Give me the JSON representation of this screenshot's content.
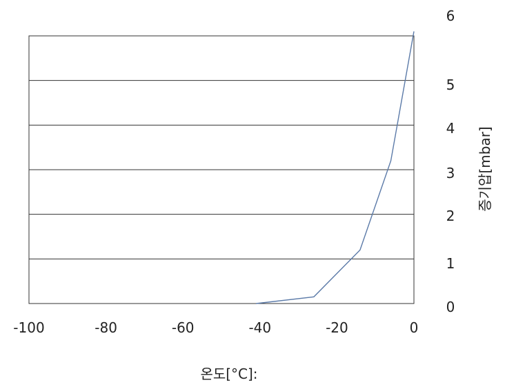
{
  "chart_data": {
    "type": "line",
    "title": "",
    "xlabel": "온도[°C]:",
    "ylabel": "증기압[mbar]",
    "x_ticks": [
      "-100",
      "-80",
      "-60",
      "-40",
      "-20",
      "0"
    ],
    "y_ticks": [
      "0",
      "1",
      "2",
      "3",
      "4",
      "5",
      "6"
    ],
    "xlim": [
      -100,
      0
    ],
    "ylim": [
      0,
      6
    ],
    "y_axis_position": "right",
    "grid": "horizontal",
    "series": [
      {
        "x": [
          -41,
          -26,
          -14,
          -6,
          0
        ],
        "y": [
          0.0,
          0.15,
          1.2,
          3.2,
          6.1
        ]
      }
    ],
    "colors": {
      "line": "#5b7aa8",
      "grid": "#333333"
    }
  }
}
